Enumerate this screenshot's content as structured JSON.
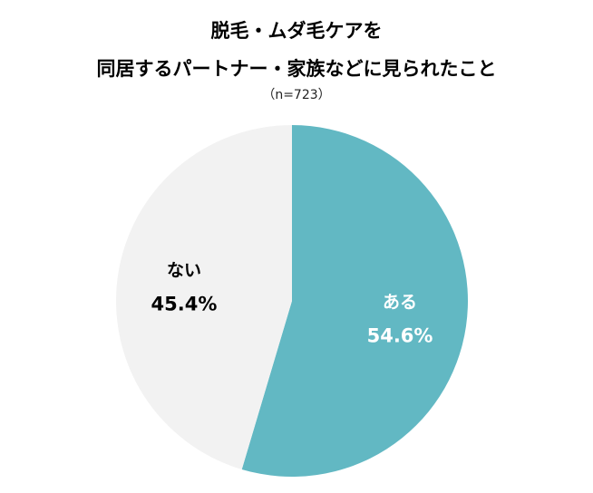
{
  "chart_data": {
    "type": "pie",
    "title": [
      "脱毛・ムダ毛ケアを",
      "同居するパートナー・家族などに見られたこと"
    ],
    "subtitle": "（n=723）",
    "slices": [
      {
        "label": "ある",
        "value": 54.6,
        "value_label": "54.6%",
        "color": "#62b8c3",
        "text_color": "#ffffff"
      },
      {
        "label": "ない",
        "value": 45.4,
        "value_label": "45.4%",
        "color": "#f2f2f2",
        "text_color": "#000000"
      }
    ],
    "start": "12 o'clock",
    "direction": "clockwise"
  }
}
